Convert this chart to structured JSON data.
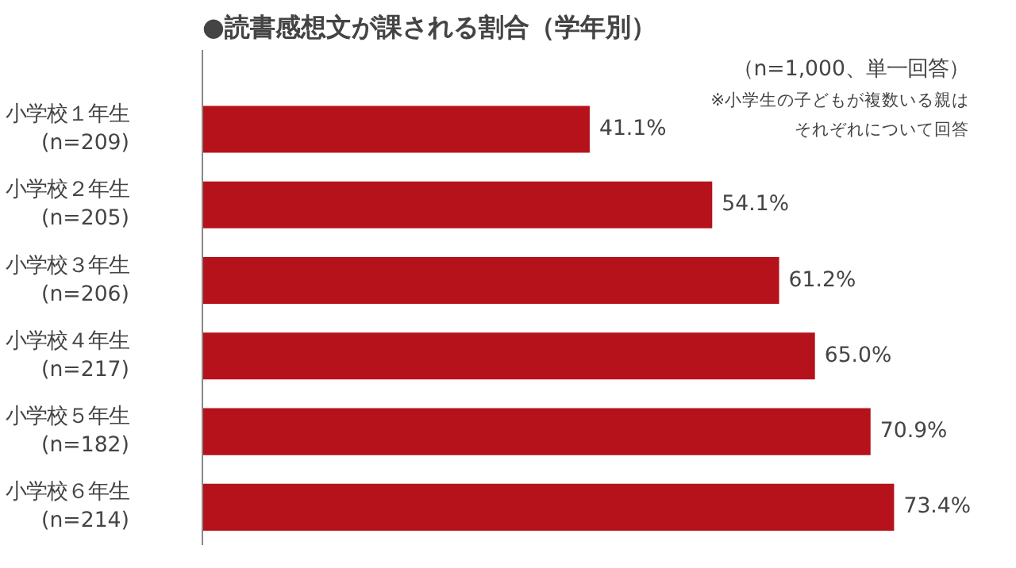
{
  "chart_data": {
    "type": "bar",
    "orientation": "horizontal",
    "title": "●読書感想文が課される割合（学年別）",
    "annotations": [
      "（n=1,000、単一回答）",
      "※小学生の子どもが複数いる親は",
      "それぞれについて回答"
    ],
    "categories": [
      "小学校１年生\n(n=209)",
      "小学校２年生\n(n=205)",
      "小学校３年生\n(n=206)",
      "小学校４年生\n(n=217)",
      "小学校５年生\n(n=182)",
      "小学校６年生\n(n=214)"
    ],
    "values": [
      41.1,
      54.1,
      61.2,
      65.0,
      70.9,
      73.4
    ],
    "value_labels": [
      "41.1%",
      "54.1%",
      "61.2%",
      "65.0%",
      "70.9%",
      "73.4%"
    ],
    "color": "#b5121b",
    "grid": false
  }
}
